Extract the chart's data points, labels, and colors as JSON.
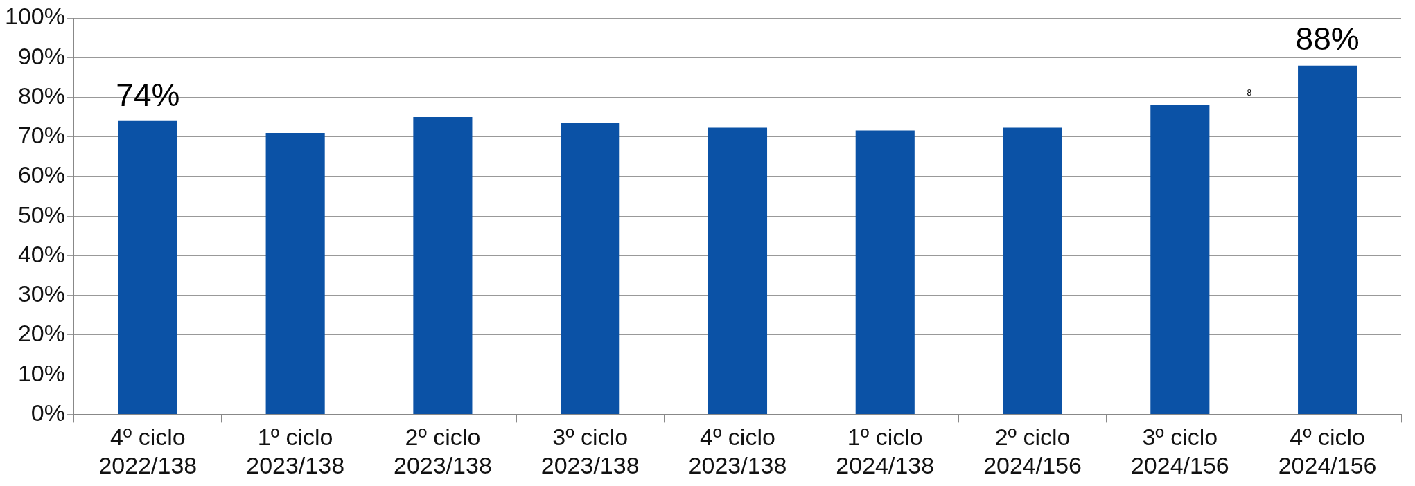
{
  "chart_data": {
    "type": "bar",
    "categories": [
      "4º ciclo\n2022/138",
      "1º ciclo\n2023/138",
      "2º ciclo\n2023/138",
      "3º ciclo\n2023/138",
      "4º ciclo\n2023/138",
      "1º ciclo\n2024/138",
      "2º ciclo\n2024/156",
      "3º ciclo\n2024/156",
      "4º ciclo\n2024/156"
    ],
    "values": [
      74,
      71,
      75,
      73.5,
      72.3,
      71.6,
      72.3,
      78,
      88
    ],
    "value_labels": [
      "74%",
      null,
      null,
      null,
      null,
      null,
      null,
      null,
      "88%"
    ],
    "color": "#0b52a6",
    "ylim": [
      0,
      100
    ],
    "yticks": [
      {
        "value": 0,
        "label": "0%"
      },
      {
        "value": 10,
        "label": "10%"
      },
      {
        "value": 20,
        "label": "20%"
      },
      {
        "value": 30,
        "label": "30%"
      },
      {
        "value": 40,
        "label": "40%"
      },
      {
        "value": 50,
        "label": "50%"
      },
      {
        "value": 60,
        "label": "60%"
      },
      {
        "value": 70,
        "label": "70%"
      },
      {
        "value": 80,
        "label": "80%"
      },
      {
        "value": 90,
        "label": "90%"
      },
      {
        "value": 100,
        "label": "100%"
      }
    ],
    "annotations": [
      "8"
    ],
    "grid": "y",
    "legend": false
  }
}
